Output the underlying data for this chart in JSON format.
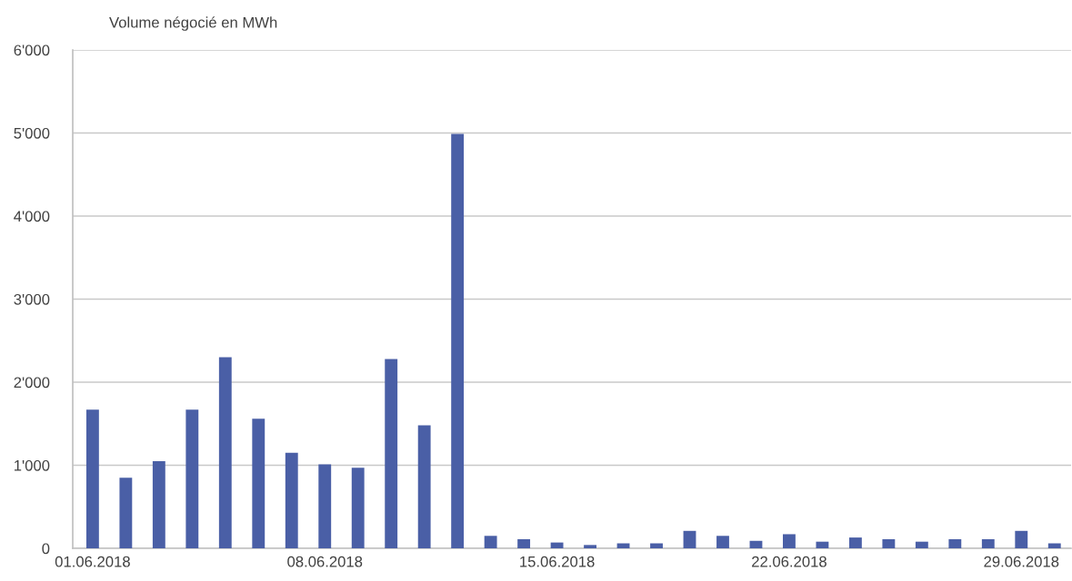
{
  "chart_data": {
    "type": "bar",
    "ylabel": "Volume négocié en MWh",
    "categories": [
      "01.06.2018",
      null,
      null,
      null,
      null,
      null,
      null,
      "08.06.2018",
      null,
      null,
      null,
      null,
      null,
      null,
      "15.06.2018",
      null,
      null,
      null,
      null,
      null,
      null,
      "22.06.2018",
      null,
      null,
      null,
      null,
      null,
      null,
      "29.06.2018",
      null
    ],
    "values": [
      1670,
      850,
      1050,
      1670,
      2300,
      1560,
      1150,
      1010,
      970,
      2280,
      1480,
      4990,
      150,
      110,
      70,
      40,
      60,
      60,
      210,
      150,
      90,
      170,
      80,
      130,
      110,
      80,
      110,
      110,
      210,
      60
    ],
    "color": "#4a5fa6",
    "ylim": [
      0,
      6000
    ],
    "yticks": [
      0,
      {
        "value": 1000,
        "label": "1'000"
      },
      {
        "value": 2000,
        "label": "2'000"
      },
      {
        "value": 3000,
        "label": "3'000"
      },
      {
        "value": 4000,
        "label": "4'000"
      },
      {
        "value": 5000,
        "label": "5'000"
      },
      {
        "value": 6000,
        "label": "6'000"
      }
    ],
    "grid": "y"
  }
}
